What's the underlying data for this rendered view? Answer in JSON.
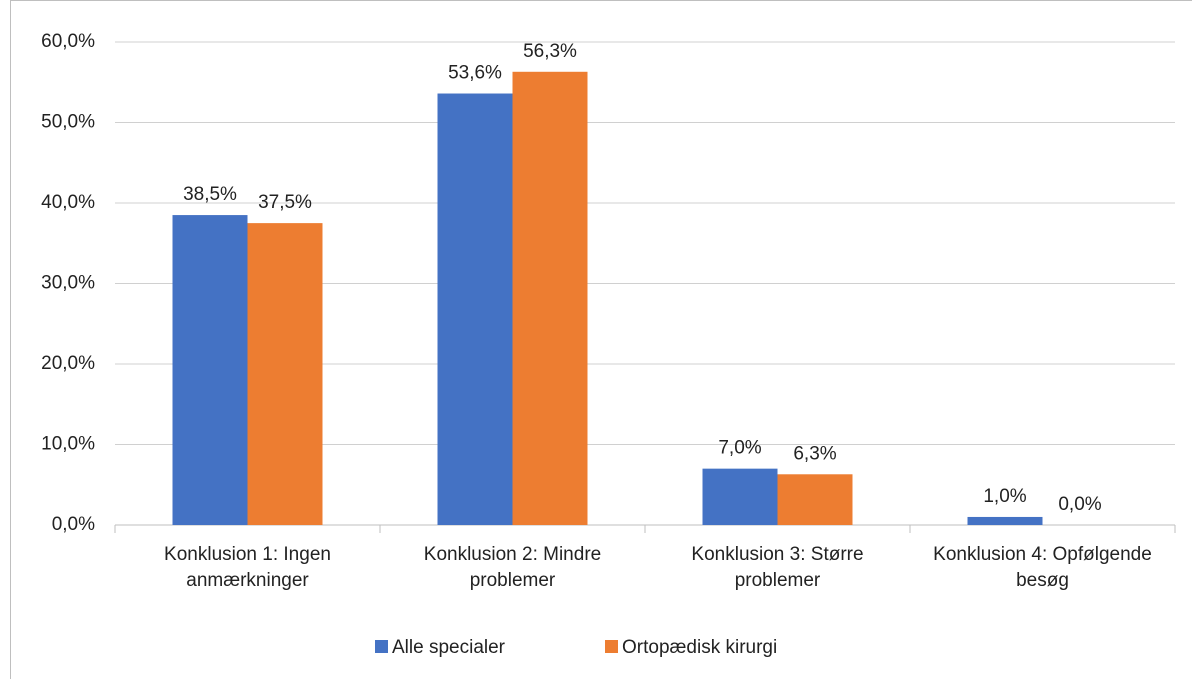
{
  "chart_data": {
    "type": "bar",
    "categories": [
      "Konklusion 1: Ingen anmærkninger",
      "Konklusion 2: Mindre problemer",
      "Konklusion 3: Større problemer",
      "Konklusion 4: Opfølgende besøg"
    ],
    "series": [
      {
        "name": "Alle specialer",
        "color": "#4472c4",
        "values": [
          38.5,
          53.6,
          7.0,
          1.0
        ],
        "value_labels": [
          "38,5%",
          "53,6%",
          "7,0%",
          "1,0%"
        ]
      },
      {
        "name": "Ortopædisk kirurgi",
        "color": "#ed7d31",
        "values": [
          37.5,
          56.3,
          6.3,
          0.0
        ],
        "value_labels": [
          "37,5%",
          "56,3%",
          "6,3%",
          "0,0%"
        ]
      }
    ],
    "ylim": [
      0,
      60
    ],
    "yticks": [
      {
        "value": 0,
        "label": "0,0%"
      },
      {
        "value": 10,
        "label": "10,0%"
      },
      {
        "value": 20,
        "label": "20,0%"
      },
      {
        "value": 30,
        "label": "30,0%"
      },
      {
        "value": 40,
        "label": "40,0%"
      },
      {
        "value": 50,
        "label": "50,0%"
      },
      {
        "value": 60,
        "label": "60,0%"
      }
    ],
    "grid": true,
    "legend": "bottom"
  }
}
